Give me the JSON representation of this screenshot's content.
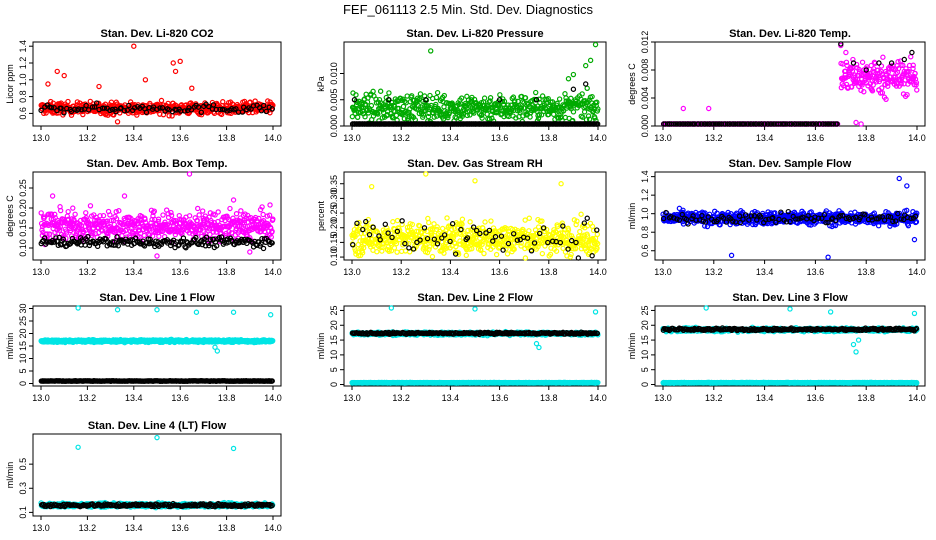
{
  "title": "FEF_061113  2.5 Min. Std. Dev. Diagnostics",
  "chart_data": [
    {
      "type": "scatter",
      "title": "Stan. Dev. Li-820 CO2",
      "ylabel": "Licor ppm",
      "xlim": [
        13.0,
        14.0
      ],
      "ylim": [
        0.45,
        1.45
      ],
      "xticks": [
        "13.0",
        "13.2",
        "13.4",
        "13.6",
        "13.8",
        "14.0"
      ],
      "yticks": [
        "0.6",
        "0.8",
        "1.0",
        "1.2",
        "1.4"
      ],
      "series": [
        {
          "color": "#ff0000",
          "base": 0.66,
          "spread": 0.07,
          "density": 2.4,
          "outliers": [
            [
              13.03,
              0.95
            ],
            [
              13.07,
              1.1
            ],
            [
              13.1,
              1.05
            ],
            [
              13.25,
              0.92
            ],
            [
              13.4,
              1.4
            ],
            [
              13.45,
              1.0
            ],
            [
              13.57,
              1.2
            ],
            [
              13.58,
              1.1
            ],
            [
              13.6,
              1.22
            ],
            [
              13.65,
              0.9
            ],
            [
              13.33,
              0.5
            ]
          ]
        },
        {
          "color": "#000000",
          "base": 0.66,
          "spread": 0.05,
          "density": 0.4,
          "outliers": []
        }
      ]
    },
    {
      "type": "scatter",
      "title": "Stan. Dev. Li-820 Pressure",
      "ylabel": "kPa",
      "xlim": [
        13.0,
        14.0
      ],
      "ylim": [
        0.0,
        0.016
      ],
      "xticks": [
        "13.0",
        "13.2",
        "13.4",
        "13.6",
        "13.8",
        "14.0"
      ],
      "yticks": [
        "0.000",
        "0.005",
        "0.010"
      ],
      "series": [
        {
          "color": "#00aa00",
          "base": 0.0035,
          "spread": 0.0025,
          "density": 2.2,
          "outliers": [
            [
              13.32,
              0.0143
            ],
            [
              13.99,
              0.0155
            ],
            [
              13.95,
              0.0115
            ],
            [
              13.97,
              0.0125
            ],
            [
              13.9,
              0.0098
            ],
            [
              13.88,
              0.009
            ]
          ]
        },
        {
          "color": "#000000",
          "base": 0.0,
          "spread": 0.0002,
          "density": 1.3,
          "outliers": [
            [
              13.01,
              0.005
            ],
            [
              13.15,
              0.005
            ],
            [
              13.3,
              0.005
            ],
            [
              13.6,
              0.005
            ],
            [
              13.75,
              0.005
            ],
            [
              13.9,
              0.007
            ],
            [
              13.95,
              0.008
            ]
          ]
        }
      ]
    },
    {
      "type": "scatter",
      "title": "Stan. Dev. Li-820 Temp.",
      "ylabel": "degrees C",
      "xlim": [
        13.0,
        14.0
      ],
      "ylim": [
        0.0,
        0.012
      ],
      "xticks": [
        "13.0",
        "13.2",
        "13.4",
        "13.6",
        "13.8",
        "14.0"
      ],
      "yticks": [
        "0.000",
        "0.004",
        "0.008",
        "0.012"
      ],
      "series": [
        {
          "color": "#ff00ff",
          "base": 0.0,
          "spread": 0.0001,
          "density": 1.2,
          "segment": [
            13.0,
            13.69
          ],
          "outliers": [
            [
              13.08,
              0.0025
            ],
            [
              13.18,
              0.0025
            ],
            [
              13.76,
              0.0005
            ],
            [
              13.78,
              0.0002
            ]
          ]
        },
        {
          "color": "#ff00ff",
          "base": 0.007,
          "spread": 0.0025,
          "density": 2.6,
          "segment": [
            13.7,
            14.0
          ],
          "outliers": [
            [
              13.7,
              0.0115
            ],
            [
              13.72,
              0.0105
            ]
          ]
        },
        {
          "color": "#000000",
          "base": 0.0,
          "spread": 0.0001,
          "density": 0.6,
          "segment": [
            13.0,
            13.69
          ],
          "outliers": [
            [
              13.7,
              0.0118
            ],
            [
              13.75,
              0.009
            ],
            [
              13.8,
              0.008
            ],
            [
              13.85,
              0.009
            ],
            [
              13.9,
              0.009
            ],
            [
              13.95,
              0.0095
            ],
            [
              13.98,
              0.0105
            ]
          ]
        }
      ]
    },
    {
      "type": "scatter",
      "title": "Stan. Dev. Amb. Box Temp.",
      "ylabel": "degrees C",
      "xlim": [
        13.0,
        14.0
      ],
      "ylim": [
        0.07,
        0.29
      ],
      "xticks": [
        "13.0",
        "13.2",
        "13.4",
        "13.6",
        "13.8",
        "14.0"
      ],
      "yticks": [
        "0.10",
        "0.15",
        "0.20",
        "0.25"
      ],
      "series": [
        {
          "color": "#ff00ff",
          "base": 0.155,
          "spread": 0.035,
          "density": 2.6,
          "outliers": [
            [
              13.64,
              0.285
            ],
            [
              13.36,
              0.23
            ],
            [
              13.05,
              0.23
            ],
            [
              13.83,
              0.22
            ],
            [
              13.5,
              0.08
            ],
            [
              13.9,
              0.09
            ]
          ]
        },
        {
          "color": "#000000",
          "base": 0.115,
          "spread": 0.012,
          "density": 0.9,
          "outliers": []
        }
      ]
    },
    {
      "type": "scatter",
      "title": "Stan. Dev. Gas Stream RH",
      "ylabel": "percent",
      "xlim": [
        13.0,
        14.0
      ],
      "ylim": [
        0.09,
        0.39
      ],
      "xticks": [
        "13.0",
        "13.2",
        "13.4",
        "13.6",
        "13.8",
        "14.0"
      ],
      "yticks": [
        "0.10",
        "0.15",
        "0.20",
        "0.25",
        "0.30",
        "0.35"
      ],
      "series": [
        {
          "color": "#ffff00",
          "base": 0.165,
          "spread": 0.055,
          "density": 2.6,
          "outliers": [
            [
              13.3,
              0.385
            ],
            [
              13.5,
              0.36
            ],
            [
              13.08,
              0.34
            ],
            [
              13.85,
              0.35
            ]
          ]
        },
        {
          "color": "#000000",
          "base": 0.17,
          "spread": 0.06,
          "density": 0.25,
          "outliers": []
        }
      ]
    },
    {
      "type": "scatter",
      "title": "Stan. Dev. Sample Flow",
      "ylabel": "ml/min",
      "xlim": [
        13.0,
        14.0
      ],
      "ylim": [
        0.5,
        1.45
      ],
      "xticks": [
        "13.0",
        "13.2",
        "13.4",
        "13.6",
        "13.8",
        "14.0"
      ],
      "yticks": [
        "0.6",
        "0.8",
        "1.0",
        "1.2",
        "1.4"
      ],
      "series": [
        {
          "color": "#0000ff",
          "base": 0.95,
          "spread": 0.07,
          "density": 2.6,
          "outliers": [
            [
              13.27,
              0.55
            ],
            [
              13.65,
              0.53
            ],
            [
              13.93,
              1.38
            ],
            [
              13.99,
              0.72
            ],
            [
              13.96,
              1.3
            ]
          ]
        },
        {
          "color": "#000000",
          "base": 0.95,
          "spread": 0.05,
          "density": 0.4,
          "outliers": []
        }
      ]
    },
    {
      "type": "scatter",
      "title": "Stan. Dev. Line 1 Flow",
      "ylabel": "ml/min",
      "xlim": [
        13.0,
        14.0
      ],
      "ylim": [
        -1,
        31
      ],
      "xticks": [
        "13.0",
        "13.2",
        "13.4",
        "13.6",
        "13.8",
        "14.0"
      ],
      "yticks": [
        "0",
        "5",
        "10",
        "15",
        "20",
        "25",
        "30"
      ],
      "series": [
        {
          "color": "#00e5e5",
          "base": 17.0,
          "spread": 0.5,
          "density": 3.0,
          "outliers": [
            [
              13.16,
              30.5
            ],
            [
              13.33,
              29.5
            ],
            [
              13.5,
              29.5
            ],
            [
              13.67,
              28.5
            ],
            [
              13.83,
              28.5
            ],
            [
              13.99,
              27.5
            ],
            [
              13.76,
              13.0
            ],
            [
              13.75,
              14.5
            ]
          ]
        },
        {
          "color": "#000000",
          "base": 1.0,
          "spread": 0.1,
          "density": 1.2,
          "outliers": []
        }
      ]
    },
    {
      "type": "scatter",
      "title": "Stan. Dev. Line 2 Flow",
      "ylabel": "ml/min",
      "xlim": [
        13.0,
        14.0
      ],
      "ylim": [
        -0.5,
        26.5
      ],
      "xticks": [
        "13.0",
        "13.2",
        "13.4",
        "13.6",
        "13.8",
        "14.0"
      ],
      "yticks": [
        "0",
        "5",
        "10",
        "15",
        "20",
        "25"
      ],
      "series": [
        {
          "color": "#00e5e5",
          "base": 17.2,
          "spread": 0.5,
          "density": 2.6,
          "outliers": [
            [
              13.16,
              26.0
            ],
            [
              13.5,
              25.5
            ],
            [
              13.99,
              24.5
            ],
            [
              13.76,
              12.5
            ],
            [
              13.75,
              13.8
            ]
          ]
        },
        {
          "color": "#00e5e5",
          "base": 0.6,
          "spread": 0.1,
          "density": 3.0,
          "outliers": []
        },
        {
          "color": "#000000",
          "base": 17.3,
          "spread": 0.3,
          "density": 1.0,
          "outliers": []
        }
      ]
    },
    {
      "type": "scatter",
      "title": "Stan. Dev. Line 3 Flow",
      "ylabel": "ml/min",
      "xlim": [
        13.0,
        14.0
      ],
      "ylim": [
        -0.5,
        26.5
      ],
      "xticks": [
        "13.0",
        "13.2",
        "13.4",
        "13.6",
        "13.8",
        "14.0"
      ],
      "yticks": [
        "0",
        "5",
        "10",
        "15",
        "20",
        "25"
      ],
      "series": [
        {
          "color": "#00e5e5",
          "base": 18.5,
          "spread": 0.6,
          "density": 2.6,
          "outliers": [
            [
              13.17,
              26.0
            ],
            [
              13.5,
              25.5
            ],
            [
              13.66,
              24.5
            ],
            [
              13.99,
              24.0
            ],
            [
              13.76,
              11.0
            ],
            [
              13.75,
              13.5
            ],
            [
              13.77,
              15.0
            ]
          ]
        },
        {
          "color": "#00e5e5",
          "base": 0.6,
          "spread": 0.1,
          "density": 3.0,
          "outliers": []
        },
        {
          "color": "#000000",
          "base": 18.6,
          "spread": 0.4,
          "density": 1.0,
          "outliers": []
        }
      ]
    },
    {
      "type": "scatter",
      "title": "Stan. Dev. Line 4 (LT) Flow",
      "ylabel": "ml/min",
      "xlim": [
        13.0,
        14.0
      ],
      "ylim": [
        0.07,
        0.75
      ],
      "xticks": [
        "13.0",
        "13.2",
        "13.4",
        "13.6",
        "13.8",
        "14.0"
      ],
      "yticks": [
        "0.1",
        "0.3",
        "0.5"
      ],
      "series": [
        {
          "color": "#00e5e5",
          "base": 0.16,
          "spread": 0.015,
          "density": 2.6,
          "outliers": [
            [
              13.16,
              0.64
            ],
            [
              13.5,
              0.72
            ],
            [
              13.83,
              0.63
            ]
          ]
        },
        {
          "color": "#000000",
          "base": 0.16,
          "spread": 0.012,
          "density": 0.9,
          "outliers": []
        }
      ]
    }
  ]
}
